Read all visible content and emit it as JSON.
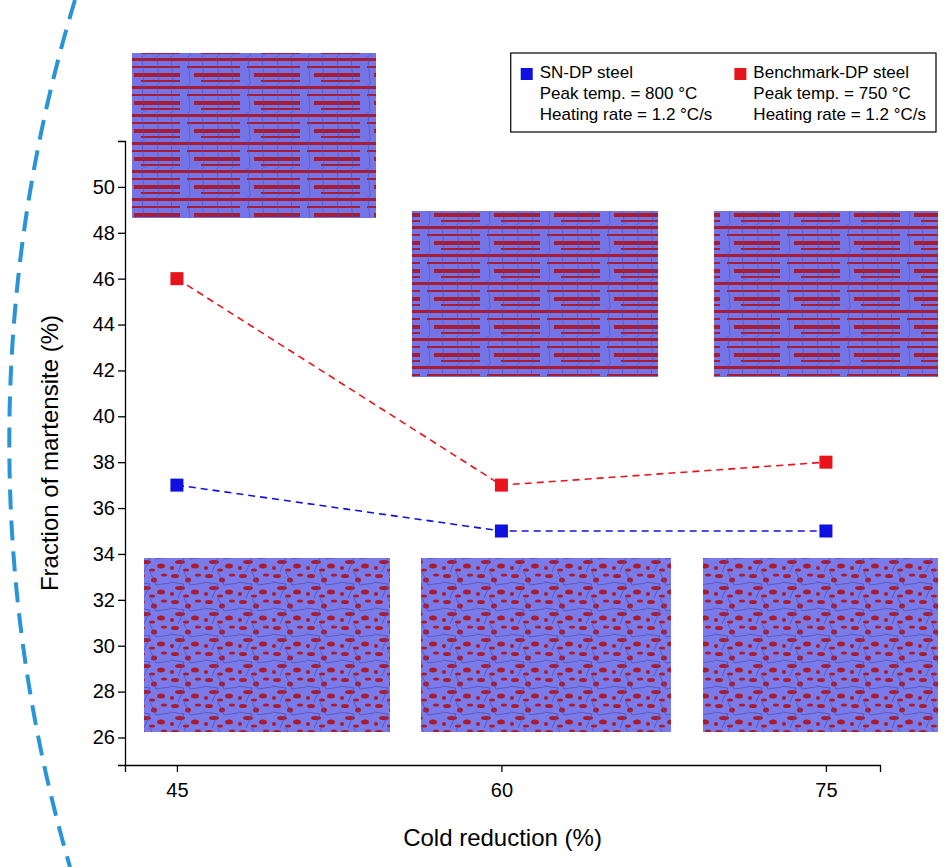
{
  "chart_data": {
    "type": "line",
    "x_label": "Cold reduction (%)",
    "y_label": "Fraction of martensite (%)",
    "x": [
      45,
      60,
      75
    ],
    "xlim": [
      42.6,
      77.5
    ],
    "xticks": [
      45,
      60,
      75
    ],
    "ylim": [
      24.8,
      52
    ],
    "yticks": [
      26,
      28,
      30,
      32,
      34,
      36,
      38,
      40,
      42,
      44,
      46,
      48,
      50
    ],
    "grid": false,
    "legend": "upper right",
    "marker": "square",
    "line_style": "dashed",
    "series": [
      {
        "name": "SN-DP steel",
        "color": "#1010e0",
        "values": [
          37,
          35,
          35
        ],
        "notes": [
          "Peak temp. = 800 °C",
          "Heating rate = 1.2 °C/s"
        ]
      },
      {
        "name": "Benchmark-DP steel",
        "color": "#e8141c",
        "values": [
          46,
          37,
          38
        ],
        "notes": [
          "Peak temp. = 750 °C",
          "Heating rate = 1.2 °C/s"
        ]
      }
    ]
  }
}
